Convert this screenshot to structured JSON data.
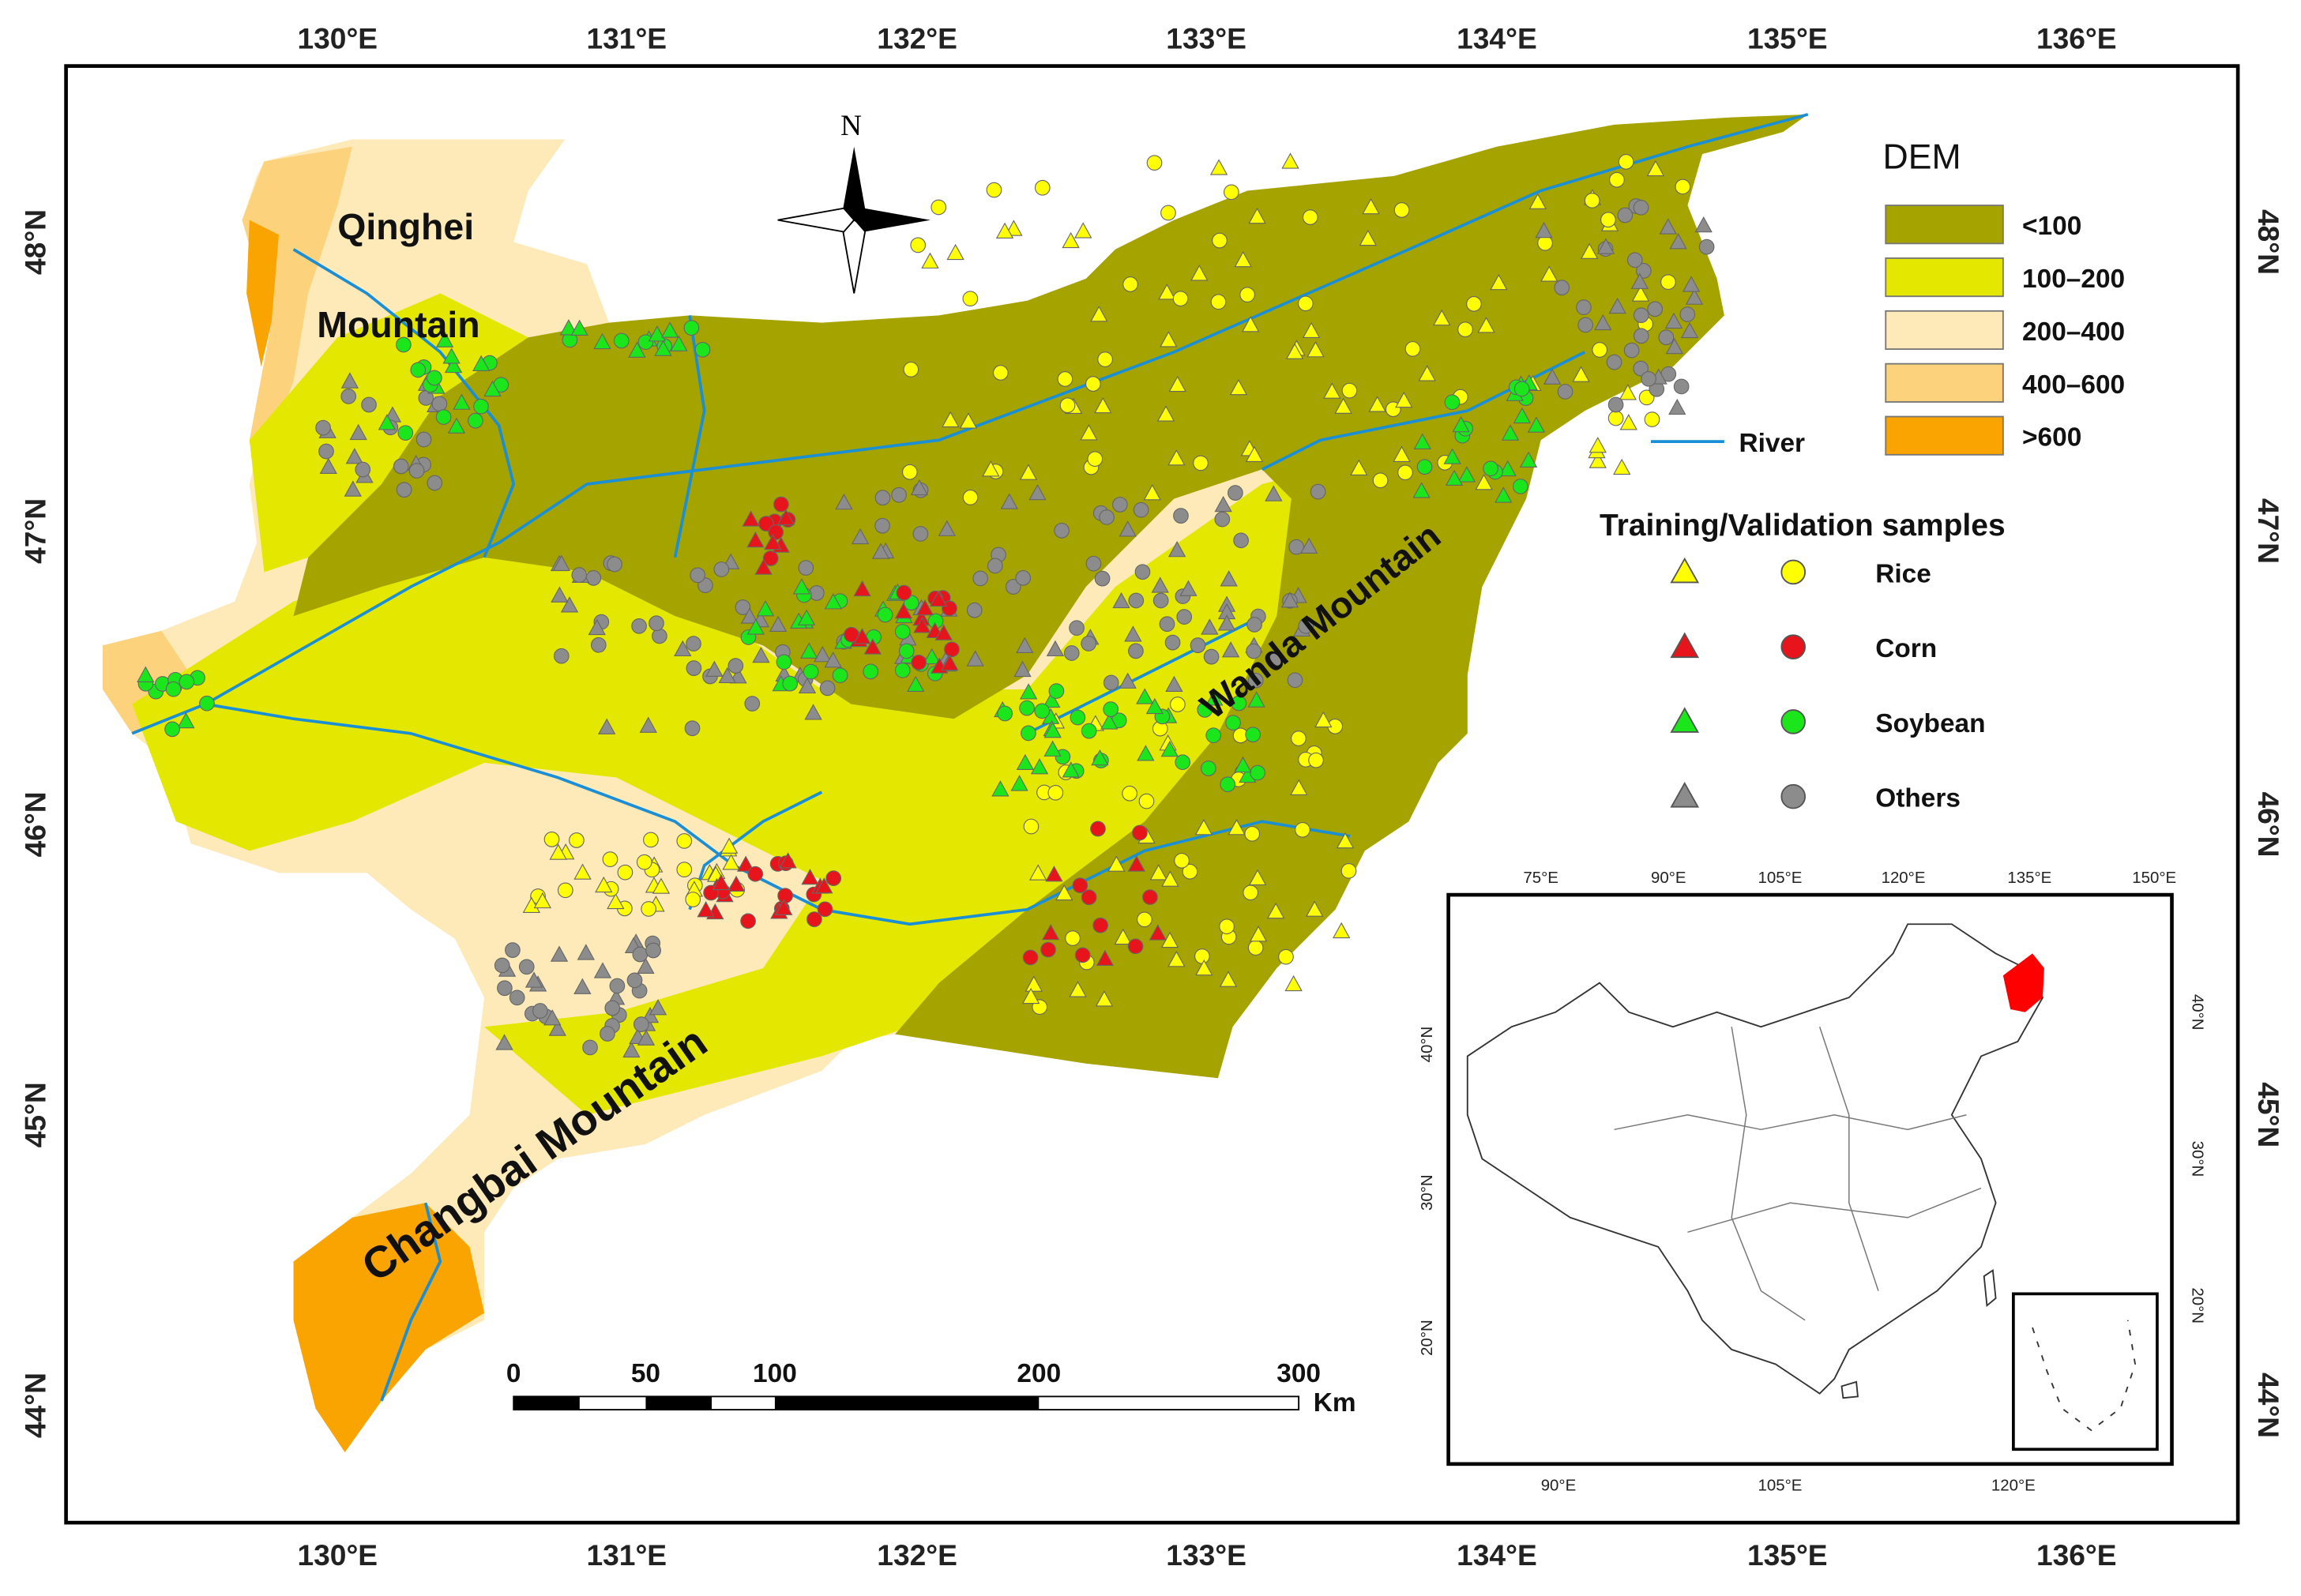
{
  "map": {
    "lon_labels": [
      "130°E",
      "131°E",
      "132°E",
      "133°E",
      "134°E",
      "135°E",
      "136°E"
    ],
    "lat_labels": [
      "48°N",
      "47°N",
      "46°N",
      "45°N",
      "44°N"
    ],
    "north": "N",
    "mountains": {
      "qinghei_1": "Qinghei",
      "qinghei_2": "Mountain",
      "wanda": "Wanda Mountain",
      "changbai": "Changbai  Mountain"
    },
    "dem_legend": {
      "title": "DEM",
      "classes": [
        {
          "label": "<100",
          "color": "#a5a300"
        },
        {
          "label": "100–200",
          "color": "#e4e800"
        },
        {
          "label": "200–400",
          "color": "#fdeab8"
        },
        {
          "label": "400–600",
          "color": "#fcd27c"
        },
        {
          "label": ">600",
          "color": "#f9a400"
        }
      ]
    },
    "river_label": "River",
    "samples_legend": {
      "title": "Training/Validation samples",
      "classes": [
        {
          "label": "Rice",
          "color": "#ffff00"
        },
        {
          "label": "Corn",
          "color": "#e8141b"
        },
        {
          "label": "Soybean",
          "color": "#1be61b"
        },
        {
          "label": "Others",
          "color": "#8c8c8c"
        }
      ]
    },
    "scale_bar": {
      "ticks": [
        "0",
        "50",
        "100",
        "200",
        "300"
      ],
      "unit": "Km"
    },
    "inset": {
      "top_labels": [
        "75°E",
        "90°E",
        "105°E",
        "120°E",
        "135°E",
        "150°E"
      ],
      "bottom_labels": [
        "90°E",
        "105°E",
        "120°E"
      ],
      "left_labels": [
        "40°N",
        "30°N",
        "20°N"
      ],
      "right_labels": [
        "40°N",
        "30°N",
        "20°N"
      ]
    }
  }
}
